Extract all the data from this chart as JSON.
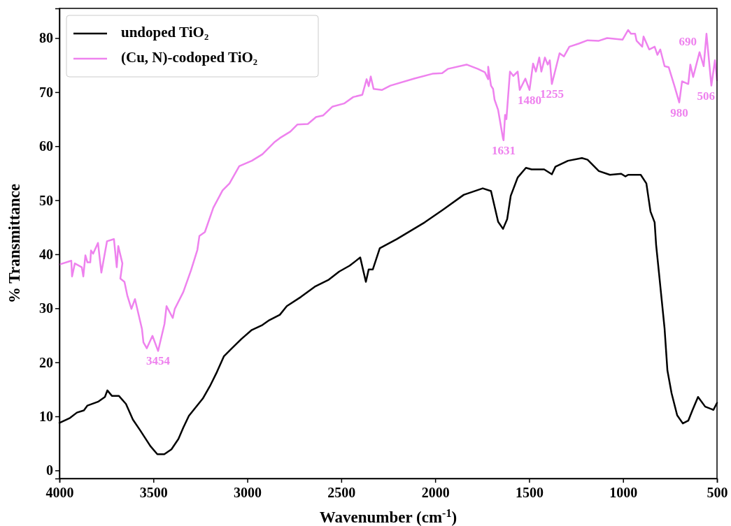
{
  "chart_data": {
    "type": "line",
    "xlabel": "Wavenumber (cm$^{-1}$)",
    "ylabel": "% Transmittance",
    "xlim": [
      4000,
      500
    ],
    "ylim": [
      -1.5,
      85.5
    ],
    "xticks": [
      4000,
      3500,
      3000,
      2500,
      2000,
      1500,
      1000,
      500
    ],
    "yticks": [
      0,
      10,
      20,
      30,
      40,
      50,
      60,
      70,
      80
    ],
    "legend": "top left",
    "grid": false,
    "line_style": "solid",
    "marker": "none",
    "series": [
      {
        "name": "undoped TiO₂",
        "color": "#000000",
        "x": [
          4000,
          3944,
          3907,
          3870,
          3851,
          3795,
          3758,
          3745,
          3721,
          3684,
          3646,
          3609,
          3572,
          3516,
          3479,
          3442,
          3404,
          3367,
          3341,
          3311,
          3237,
          3199,
          3162,
          3125,
          3088,
          3032,
          2976,
          2920,
          2883,
          2827,
          2790,
          2715,
          2641,
          2566,
          2511,
          2455,
          2399,
          2369,
          2354,
          2332,
          2295,
          2205,
          2056,
          1960,
          1848,
          1747,
          1703,
          1665,
          1639,
          1617,
          1598,
          1561,
          1517,
          1487,
          1420,
          1379,
          1360,
          1293,
          1219,
          1189,
          1129,
          1070,
          1010,
          988,
          973,
          906,
          876,
          854,
          832,
          824,
          809,
          794,
          779,
          764,
          742,
          712,
          682,
          653,
          630,
          601,
          563,
          519,
          500
        ],
        "values": [
          8.8,
          9.7,
          10.7,
          11.1,
          12.0,
          12.7,
          13.6,
          14.8,
          13.8,
          13.8,
          12.3,
          9.4,
          7.5,
          4.5,
          3.0,
          3.0,
          3.9,
          5.8,
          7.9,
          10.1,
          13.3,
          15.6,
          18.2,
          21.1,
          22.4,
          24.3,
          26.0,
          26.9,
          27.8,
          28.8,
          30.4,
          32.1,
          34.0,
          35.3,
          36.8,
          37.9,
          39.4,
          34.9,
          37.2,
          37.2,
          41.1,
          42.8,
          45.9,
          48.2,
          51.0,
          52.2,
          51.7,
          46.0,
          44.7,
          46.5,
          50.8,
          54.2,
          56.0,
          55.7,
          55.7,
          54.8,
          56.2,
          57.3,
          57.8,
          57.5,
          55.4,
          54.7,
          54.9,
          54.4,
          54.7,
          54.7,
          53.1,
          47.9,
          45.9,
          41.7,
          36.6,
          31.4,
          26.2,
          18.5,
          14.3,
          10.2,
          8.7,
          9.2,
          11.2,
          13.6,
          11.8,
          11.2,
          12.5
        ]
      },
      {
        "name": "(Cu, N)-codoped TiO₂",
        "color": "#ee82ee",
        "x": [
          4000,
          3937,
          3933,
          3918,
          3881,
          3873,
          3862,
          3851,
          3836,
          3832,
          3821,
          3795,
          3777,
          3747,
          3710,
          3695,
          3687,
          3665,
          3676,
          3654,
          3639,
          3617,
          3598,
          3561,
          3553,
          3535,
          3505,
          3475,
          3441,
          3430,
          3397,
          3386,
          3341,
          3300,
          3266,
          3255,
          3226,
          3181,
          3132,
          3095,
          3043,
          2976,
          2920,
          2883,
          2857,
          2827,
          2771,
          2734,
          2678,
          2634,
          2596,
          2548,
          2485,
          2436,
          2388,
          2365,
          2354,
          2343,
          2328,
          2284,
          2239,
          2112,
          2015,
          1963,
          1933,
          1833,
          1773,
          1736,
          1718,
          1718,
          1703,
          1692,
          1684,
          1665,
          1639,
          1636,
          1628,
          1621,
          1602,
          1584,
          1561,
          1550,
          1520,
          1498,
          1479,
          1464,
          1446,
          1435,
          1416,
          1401,
          1390,
          1379,
          1338,
          1315,
          1286,
          1234,
          1189,
          1129,
          1085,
          1003,
          973,
          958,
          936,
          928,
          898,
          891,
          861,
          832,
          817,
          802,
          779,
          757,
          727,
          701,
          686,
          653,
          642,
          627,
          593,
          571,
          556,
          530,
          511,
          500
        ],
        "values": [
          38.1,
          38.8,
          35.9,
          38.3,
          37.6,
          35.9,
          39.8,
          38.5,
          38.5,
          40.7,
          40.1,
          42.1,
          36.6,
          42.4,
          42.8,
          37.6,
          41.5,
          38.3,
          35.5,
          34.9,
          32.4,
          29.9,
          31.7,
          26.2,
          23.7,
          22.6,
          24.9,
          22.1,
          27.1,
          30.4,
          28.2,
          29.9,
          33.0,
          37.0,
          40.8,
          43.4,
          44.1,
          48.6,
          51.8,
          53.1,
          56.3,
          57.3,
          58.5,
          59.8,
          60.7,
          61.5,
          62.7,
          64.0,
          64.1,
          65.4,
          65.7,
          67.3,
          67.9,
          69.1,
          69.5,
          72.4,
          71.1,
          72.9,
          70.6,
          70.4,
          71.2,
          72.5,
          73.4,
          73.5,
          74.3,
          75.1,
          74.3,
          73.7,
          72.4,
          74.7,
          71.2,
          70.6,
          68.6,
          66.7,
          61.4,
          61.1,
          65.8,
          65.0,
          73.8,
          73.0,
          73.8,
          70.4,
          72.5,
          70.4,
          75.3,
          73.8,
          76.4,
          73.8,
          76.4,
          75.1,
          75.9,
          71.5,
          77.2,
          76.6,
          78.4,
          79.0,
          79.6,
          79.5,
          80.0,
          79.7,
          81.5,
          80.8,
          80.8,
          79.5,
          78.4,
          80.3,
          77.9,
          78.4,
          76.9,
          77.9,
          74.8,
          74.6,
          71.2,
          68.1,
          72.0,
          71.5,
          75.1,
          72.8,
          77.4,
          74.8,
          80.8,
          71.2,
          75.9,
          72.2
        ]
      }
    ],
    "annotations": [
      {
        "text": "3454",
        "x": 3475,
        "y": 22.1
      },
      {
        "text": "1631",
        "x": 1636,
        "y": 61.1
      },
      {
        "text": "1480",
        "x": 1498,
        "y": 70.4
      },
      {
        "text": "1255",
        "x": 1379,
        "y": 71.5
      },
      {
        "text": "980",
        "x": 701,
        "y": 68.1
      },
      {
        "text": "690",
        "x": 593,
        "y": 77.4
      },
      {
        "text": "506",
        "x": 530,
        "y": 71.2
      }
    ]
  }
}
